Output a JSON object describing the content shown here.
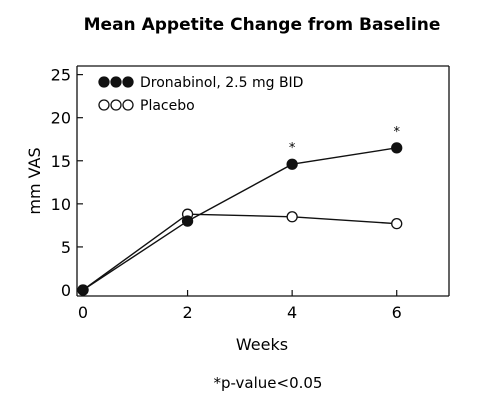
{
  "chart_data": {
    "type": "line",
    "title": "Mean Appetite Change from Baseline",
    "xlabel": "Weeks",
    "ylabel": "mm VAS",
    "x_ticks": [
      "0",
      "2",
      "4",
      "6"
    ],
    "y_ticks": [
      "0",
      "5",
      "10",
      "15",
      "20",
      "25"
    ],
    "xlim": [
      0,
      7
    ],
    "ylim": [
      0,
      26
    ],
    "grid": false,
    "legend_position": "top-left",
    "x": [
      0,
      2,
      4,
      6
    ],
    "series": [
      {
        "name": "Dronabinol, 2.5 mg BID",
        "marker": "filled-circle",
        "color": "#111111",
        "values": [
          0,
          8.0,
          14.6,
          16.5
        ]
      },
      {
        "name": "Placebo",
        "marker": "open-circle",
        "color": "#111111",
        "values": [
          0,
          8.8,
          8.5,
          7.7
        ]
      }
    ],
    "annotations": [
      {
        "text": "*",
        "x": 4
      },
      {
        "text": "*",
        "x": 6
      }
    ],
    "footnote": "*p-value<0.05"
  }
}
